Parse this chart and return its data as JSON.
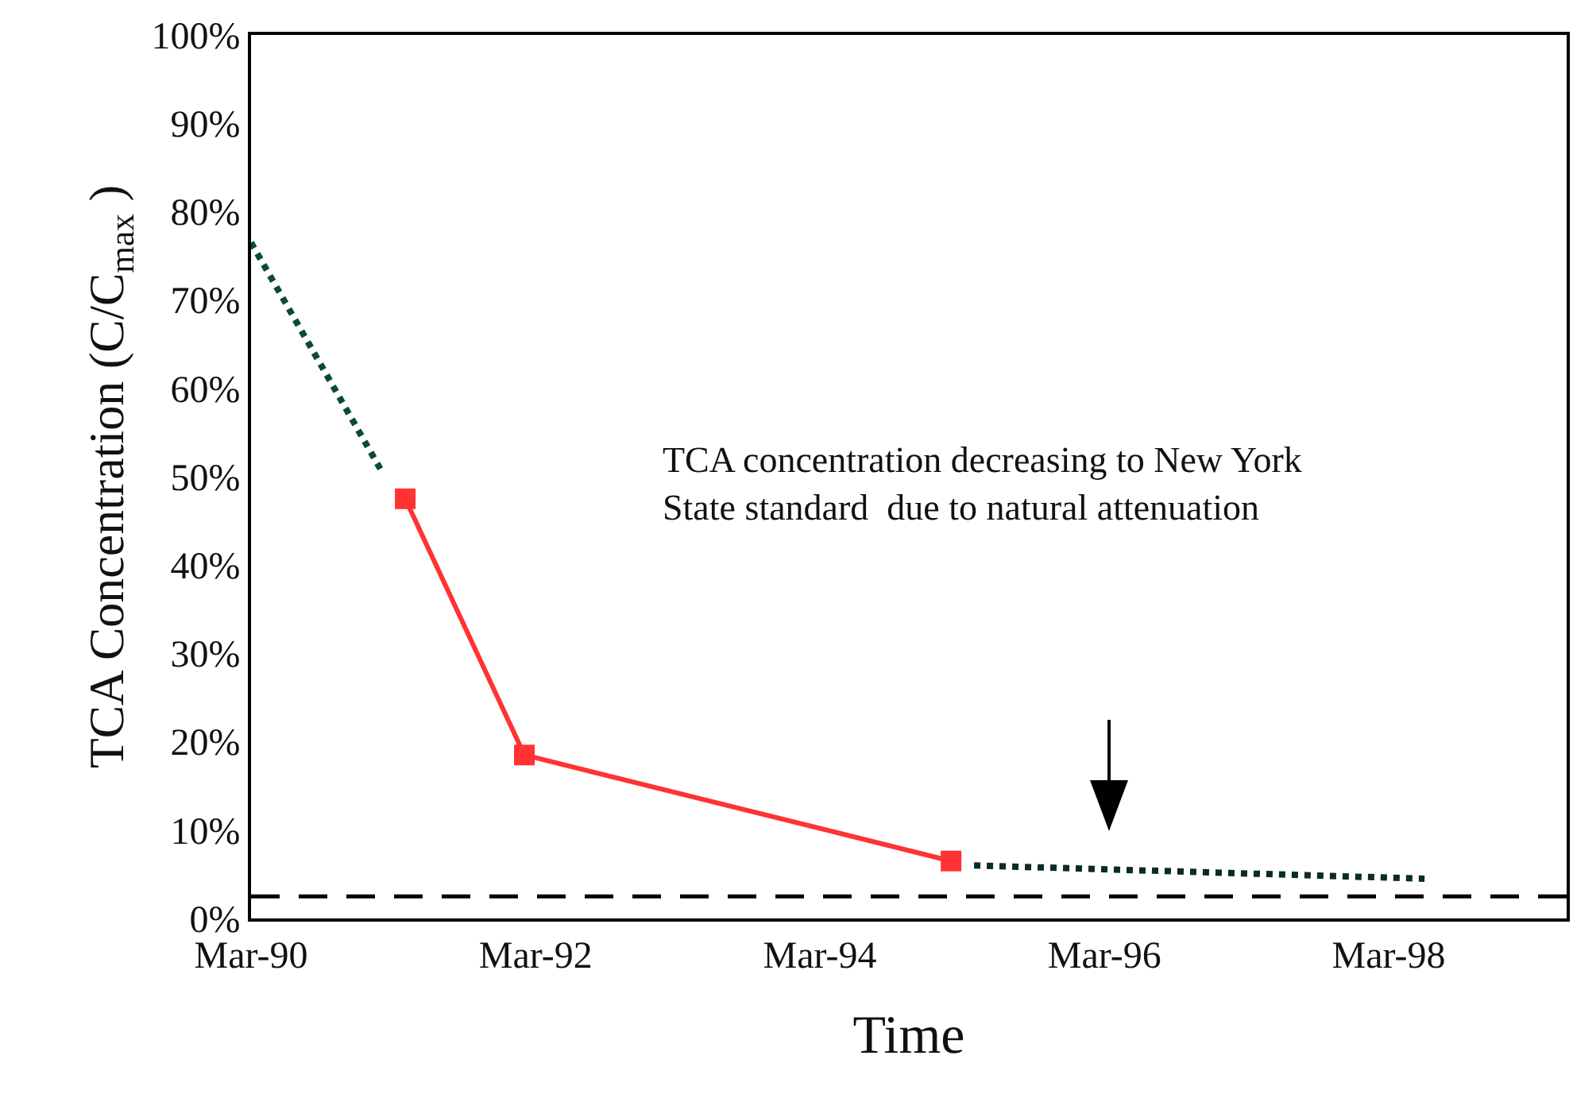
{
  "chart_data": {
    "type": "line",
    "xlabel": "Time",
    "ylabel": "TCA Concentration (C/C$_{max}$ )",
    "annotations": [
      "TCA concentration decreasing to New York State standard  due to natural attenuation"
    ],
    "series": [
      {
        "x": [
          "1990-03",
          "1991-02"
        ],
        "values": [
          76.5,
          50.5
        ],
        "color": "#0b4a3a",
        "line_style": "dotted",
        "marker": "none"
      },
      {
        "x": [
          "1991-04",
          "1992-02",
          "1995-02"
        ],
        "values": [
          47.5,
          18.5,
          6.5
        ],
        "color": "#ff3333",
        "line_style": "solid",
        "marker": "square"
      },
      {
        "x": [
          "1995-04",
          "1998-06"
        ],
        "values": [
          6,
          4.5
        ],
        "color": "#0b2a2a",
        "line_style": "dotted",
        "marker": "none"
      }
    ],
    "ref_lines": [
      {
        "axis": "y",
        "value": 2.5,
        "color": "#000000",
        "line_style": "dashed"
      }
    ],
    "xlim": [
      "1990-03",
      "1999-06"
    ],
    "xticks": [
      {
        "value": "1990-03",
        "label": "Mar-90"
      },
      {
        "value": "1992-03",
        "label": "Mar-92"
      },
      {
        "value": "1994-03",
        "label": "Mar-94"
      },
      {
        "value": "1996-03",
        "label": "Mar-96"
      },
      {
        "value": "1998-03",
        "label": "Mar-98"
      }
    ],
    "ylim": [
      0,
      100
    ],
    "yticks": [
      {
        "value": 0,
        "label": "0%"
      },
      {
        "value": 10,
        "label": "10%"
      },
      {
        "value": 20,
        "label": "20%"
      },
      {
        "value": 30,
        "label": "30%"
      },
      {
        "value": 40,
        "label": "40%"
      },
      {
        "value": 50,
        "label": "50%"
      },
      {
        "value": 60,
        "label": "60%"
      },
      {
        "value": 70,
        "label": "70%"
      },
      {
        "value": 80,
        "label": "80%"
      },
      {
        "value": 90,
        "label": "90%"
      },
      {
        "value": 100,
        "label": "100%"
      }
    ],
    "grid": false
  }
}
